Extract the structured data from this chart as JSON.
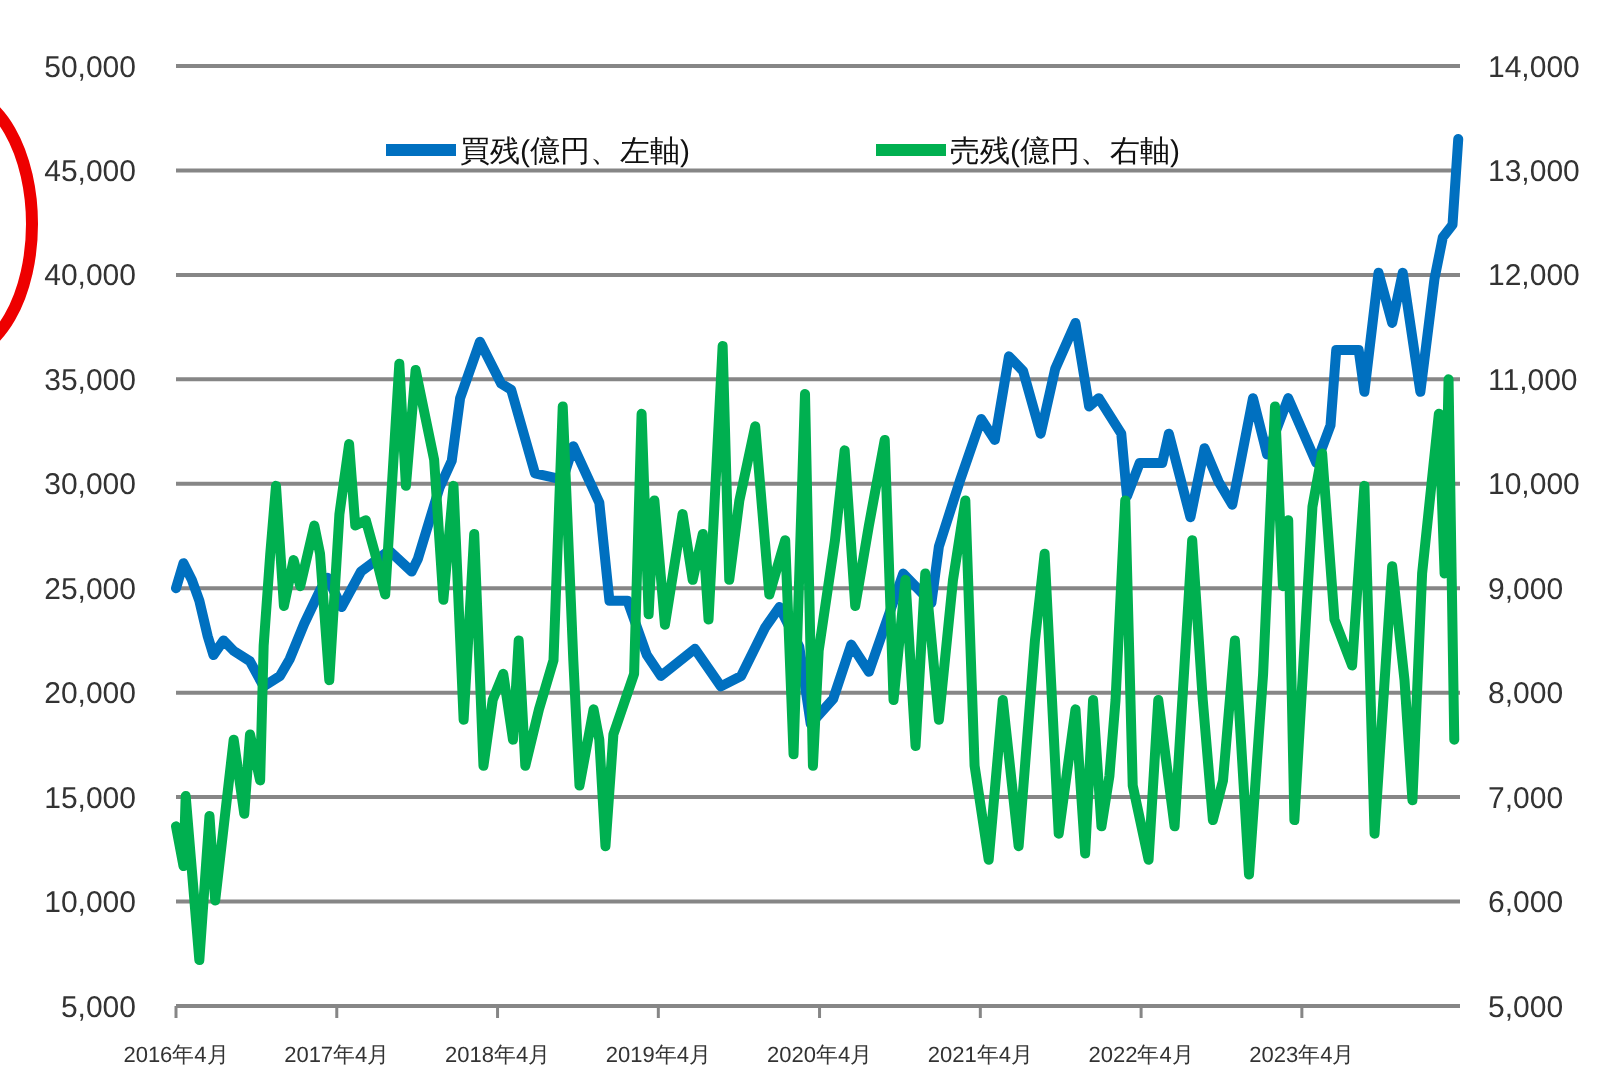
{
  "chart_data": {
    "type": "line",
    "xlim": [
      "2016-04-01",
      "2024-03-25"
    ],
    "xticks": [
      {
        "value": "2016-04-01",
        "label": "2016年4月"
      },
      {
        "value": "2017-04-01",
        "label": "2017年4月"
      },
      {
        "value": "2018-04-01",
        "label": "2018年4月"
      },
      {
        "value": "2019-04-01",
        "label": "2019年4月"
      },
      {
        "value": "2020-04-01",
        "label": "2020年4月"
      },
      {
        "value": "2021-04-01",
        "label": "2021年4月"
      },
      {
        "value": "2022-04-01",
        "label": "2022年4月"
      },
      {
        "value": "2023-04-01",
        "label": "2023年4月"
      }
    ],
    "ylim": [
      5000,
      50000
    ],
    "yticks": [
      {
        "value": 5000,
        "label": "5,000"
      },
      {
        "value": 10000,
        "label": "10,000"
      },
      {
        "value": 15000,
        "label": "15,000"
      },
      {
        "value": 20000,
        "label": "20,000"
      },
      {
        "value": 25000,
        "label": "25,000"
      },
      {
        "value": 30000,
        "label": "30,000"
      },
      {
        "value": 35000,
        "label": "35,000"
      },
      {
        "value": 40000,
        "label": "40,000"
      },
      {
        "value": 45000,
        "label": "45,000"
      },
      {
        "value": 50000,
        "label": "50,000"
      }
    ],
    "y2lim": [
      5000,
      14000
    ],
    "y2ticks": [
      {
        "value": 5000,
        "label": "5,000"
      },
      {
        "value": 6000,
        "label": "6,000"
      },
      {
        "value": 7000,
        "label": "7,000"
      },
      {
        "value": 8000,
        "label": "8,000"
      },
      {
        "value": 9000,
        "label": "9,000"
      },
      {
        "value": 10000,
        "label": "10,000"
      },
      {
        "value": 11000,
        "label": "11,000"
      },
      {
        "value": 12000,
        "label": "12,000"
      },
      {
        "value": 13000,
        "label": "13,000"
      },
      {
        "value": 14000,
        "label": "14,000"
      }
    ],
    "grid": "y",
    "legend": "top",
    "marker": "none",
    "line_style": "solid",
    "series": [
      {
        "name": "買残(億円、左軸)",
        "color": "#0070c0",
        "axis": "y",
        "x": [
          "2016-04-01",
          "2016-04-18",
          "2016-05-07",
          "2016-05-24",
          "2016-06-12",
          "2016-06-25",
          "2016-07-18",
          "2016-08-10",
          "2016-09-16",
          "2016-10-17",
          "2016-11-23",
          "2016-12-15",
          "2017-01-17",
          "2017-02-22",
          "2017-03-11",
          "2017-04-12",
          "2017-05-26",
          "2017-07-29",
          "2017-09-18",
          "2017-10-02",
          "2017-11-20",
          "2017-12-18",
          "2018-01-06",
          "2018-02-20",
          "2018-04-09",
          "2018-05-02",
          "2018-06-25",
          "2018-08-27",
          "2018-09-20",
          "2018-11-18",
          "2018-12-11",
          "2019-01-21",
          "2019-03-06",
          "2019-04-07",
          "2019-06-23",
          "2019-08-21",
          "2019-10-06",
          "2019-11-29",
          "2020-01-01",
          "2020-02-15",
          "2020-03-12",
          "2020-05-02",
          "2020-06-12",
          "2020-07-22",
          "2020-10-08",
          "2020-12-11",
          "2020-12-28",
          "2021-02-13",
          "2021-04-03",
          "2021-05-04",
          "2021-06-05",
          "2021-07-07",
          "2021-08-16",
          "2021-09-18",
          "2021-11-03",
          "2021-12-04",
          "2021-12-26",
          "2022-02-15",
          "2022-02-28",
          "2022-03-29",
          "2022-05-19",
          "2022-06-03",
          "2022-07-22",
          "2022-08-23",
          "2022-09-24",
          "2022-10-25",
          "2022-12-11",
          "2023-01-12",
          "2023-03-01",
          "2023-05-04",
          "2023-06-05",
          "2023-06-18",
          "2023-08-08",
          "2023-08-21",
          "2023-09-22",
          "2023-10-23",
          "2023-11-16",
          "2023-12-26",
          "2024-01-27",
          "2024-02-15",
          "2024-03-08",
          "2024-03-21"
        ],
        "values": [
          25000,
          26200,
          25400,
          24400,
          22700,
          21800,
          22500,
          22000,
          21500,
          20300,
          20800,
          21600,
          23300,
          24900,
          25500,
          24100,
          25800,
          26800,
          25800,
          26400,
          29800,
          31100,
          34100,
          36800,
          34800,
          34500,
          30500,
          30200,
          31800,
          29100,
          24400,
          24400,
          21800,
          20800,
          22100,
          20300,
          20800,
          23100,
          24100,
          22200,
          18500,
          19700,
          22300,
          21000,
          25700,
          24300,
          27000,
          30100,
          33100,
          32100,
          36100,
          35400,
          32400,
          35500,
          37700,
          33700,
          34100,
          32400,
          29400,
          31000,
          31000,
          32400,
          28400,
          31700,
          30100,
          29000,
          34100,
          31400,
          34100,
          31000,
          32800,
          36400,
          36400,
          34400,
          40100,
          37700,
          40100,
          34400,
          39800,
          41800,
          42400,
          46500
        ]
      },
      {
        "name": "売残(億円、右軸)",
        "color": "#00b050",
        "axis": "y2",
        "x": [
          "2016-04-01",
          "2016-04-18",
          "2016-04-23",
          "2016-05-24",
          "2016-06-16",
          "2016-06-29",
          "2016-08-10",
          "2016-09-03",
          "2016-09-16",
          "2016-10-09",
          "2016-10-17",
          "2016-11-01",
          "2016-11-14",
          "2016-12-02",
          "2016-12-24",
          "2017-01-08",
          "2017-02-09",
          "2017-02-22",
          "2017-03-15",
          "2017-04-07",
          "2017-04-29",
          "2017-05-13",
          "2017-06-06",
          "2017-06-27",
          "2017-07-20",
          "2017-08-21",
          "2017-09-05",
          "2017-09-27",
          "2017-11-08",
          "2017-11-29",
          "2017-12-22",
          "2018-01-14",
          "2018-02-07",
          "2018-02-28",
          "2018-03-21",
          "2018-04-14",
          "2018-05-06",
          "2018-05-19",
          "2018-06-03",
          "2018-07-04",
          "2018-08-06",
          "2018-08-27",
          "2018-09-20",
          "2018-10-04",
          "2018-11-05",
          "2018-11-18",
          "2018-12-02",
          "2018-12-20",
          "2019-02-05",
          "2019-02-22",
          "2019-03-10",
          "2019-03-23",
          "2019-04-16",
          "2019-05-26",
          "2019-06-18",
          "2019-07-11",
          "2019-07-24",
          "2019-08-25",
          "2019-09-09",
          "2019-10-02",
          "2019-11-07",
          "2019-12-09",
          "2020-01-14",
          "2020-02-02",
          "2020-02-28",
          "2020-03-17",
          "2020-03-30",
          "2020-05-06",
          "2020-05-28",
          "2020-06-21",
          "2020-07-22",
          "2020-08-27",
          "2020-09-16",
          "2020-10-13",
          "2020-11-05",
          "2020-11-27",
          "2020-12-28",
          "2021-01-29",
          "2021-02-26",
          "2021-03-19",
          "2021-04-20",
          "2021-05-22",
          "2021-06-27",
          "2021-08-03",
          "2021-08-25",
          "2021-09-26",
          "2021-11-03",
          "2021-11-25",
          "2021-12-13",
          "2022-01-01",
          "2022-01-19",
          "2022-02-02",
          "2022-02-24",
          "2022-03-13",
          "2022-04-18",
          "2022-05-10",
          "2022-06-16",
          "2022-07-26",
          "2022-08-19",
          "2022-09-11",
          "2022-10-04",
          "2022-10-31",
          "2022-12-02",
          "2023-01-03",
          "2023-01-30",
          "2023-02-17",
          "2023-03-01",
          "2023-03-15",
          "2023-04-25",
          "2023-05-17",
          "2023-06-14",
          "2023-07-24",
          "2023-08-21",
          "2023-09-13",
          "2023-10-23",
          "2023-11-20",
          "2023-12-08",
          "2023-12-30",
          "2024-02-06",
          "2024-02-19",
          "2024-02-28",
          "2024-03-12"
        ],
        "values": [
          6720,
          6340,
          7010,
          5440,
          6820,
          6010,
          7550,
          6840,
          7600,
          7160,
          8450,
          9330,
          9980,
          8830,
          9270,
          9020,
          9600,
          9330,
          8120,
          9710,
          10380,
          9600,
          9650,
          9330,
          8940,
          11150,
          9980,
          11090,
          10230,
          8890,
          9980,
          7740,
          9520,
          7300,
          7930,
          8180,
          7550,
          8500,
          7300,
          7840,
          8310,
          10740,
          8310,
          7110,
          7840,
          7550,
          6530,
          7600,
          8180,
          10670,
          8750,
          9840,
          8650,
          9710,
          9080,
          9520,
          8700,
          11320,
          9080,
          9840,
          10550,
          8940,
          9460,
          7410,
          10860,
          7300,
          8400,
          9460,
          10320,
          8830,
          9600,
          10420,
          7930,
          9080,
          7490,
          9140,
          7740,
          9080,
          9840,
          7300,
          6400,
          7930,
          6530,
          8500,
          9330,
          6650,
          7840,
          6460,
          7930,
          6720,
          7200,
          7930,
          9840,
          7110,
          6400,
          7930,
          6720,
          9460,
          7930,
          6780,
          7160,
          8500,
          6260,
          8180,
          10740,
          9020,
          9650,
          6780,
          9780,
          10290,
          8700,
          8260,
          9980,
          6650,
          9210,
          8120,
          6970,
          9140,
          10670,
          9140,
          11000,
          7550
        ]
      }
    ]
  }
}
